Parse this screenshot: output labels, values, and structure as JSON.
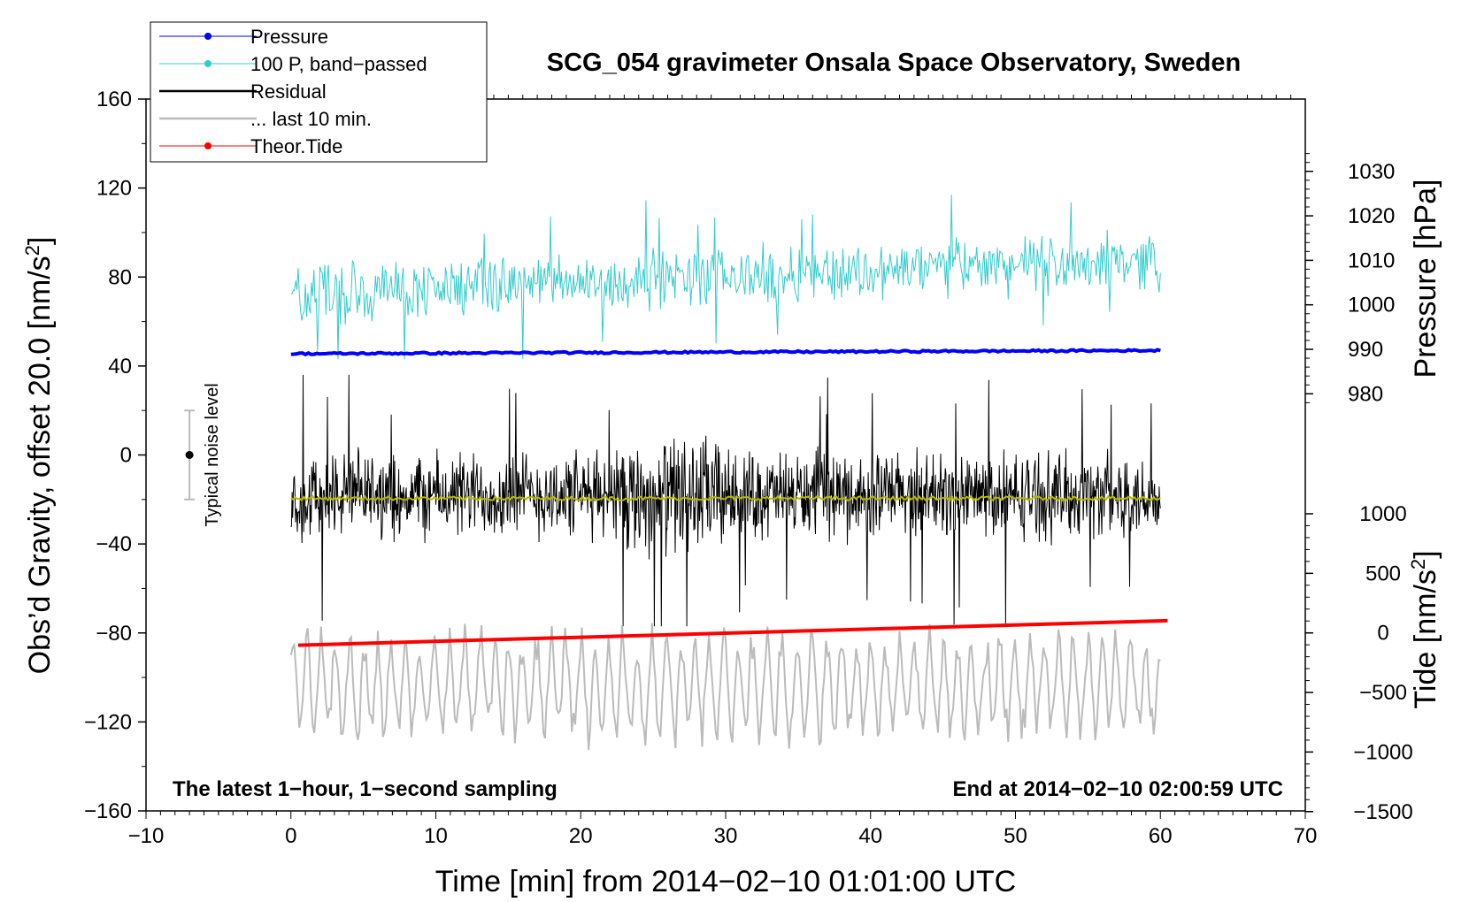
{
  "chart_data": {
    "type": "line",
    "title": "SCG_054 gravimeter Onsala Space Observatory, Sweden",
    "xlabel": "Time [min] from 2014−02−10 01:01:00 UTC",
    "ylabel_main": "Obs’d Gravity, offset 20.0 [nm/s",
    "ylabel_main_sup": "2",
    "ylabel_main_end": "]",
    "ylabel_pressure": "Pressure [hPa]",
    "ylabel_tide": "Tide [nm/s",
    "ylabel_tide_sup": "2",
    "ylabel_tide_end": "]",
    "xlim": [
      -10,
      70
    ],
    "ylim": [
      -160,
      160
    ],
    "x_ticks": [
      "−10",
      "0",
      "10",
      "20",
      "30",
      "40",
      "50",
      "60",
      "70"
    ],
    "y_ticks": [
      "160",
      "120",
      "80",
      "40",
      "0",
      "−40",
      "−80",
      "−120",
      "−160"
    ],
    "pressure_ticks": [
      "1030",
      "1020",
      "1010",
      "1000",
      "990",
      "980"
    ],
    "tide_ticks": [
      "1000",
      "500",
      "0",
      "−500",
      "−1000",
      "−1500"
    ],
    "annotation_left": "The latest 1−hour, 1−second sampling",
    "annotation_right": "End at 2014−02−10 02:00:59 UTC",
    "noise_label": "Typical noise level",
    "noise_bar": {
      "x": -7,
      "center": 0,
      "halfwidth": 20
    },
    "legend": [
      {
        "label": "Pressure",
        "color": "#0000ff",
        "marker": true
      },
      {
        "label": "100 P, band−passed",
        "color": "#33cccc",
        "marker": true
      },
      {
        "label": "Residual",
        "color": "#000000",
        "marker": false
      },
      {
        "label": "... last 10 min.",
        "color": "#bbbbbb",
        "marker": false
      },
      {
        "label": "Theor.Tide",
        "color": "#ff0000",
        "marker": true
      }
    ],
    "series": [
      {
        "name": "Pressure",
        "color": "#0000ff",
        "x_range": [
          0,
          60
        ],
        "level_start": 45.5,
        "level_end": 47.0,
        "note": "pressure axis ~988.5 to 989.5 hPa"
      },
      {
        "name": "100 P, band-passed",
        "color": "#33cccc",
        "x_range": [
          0,
          60
        ],
        "center_start": 72,
        "center_end": 88,
        "amplitude": 12,
        "min": 43,
        "max": 117
      },
      {
        "name": "Residual",
        "color": "#000000",
        "x_range": [
          0,
          60
        ],
        "center": -18,
        "amplitude": 18,
        "min": -77,
        "max": 36
      },
      {
        "name": "Residual smoothed",
        "color": "#b8b800",
        "x_range": [
          0,
          60
        ],
        "level": -19.5
      },
      {
        "name": "... last 10 min.",
        "color": "#bbbbbb",
        "x_range": [
          0,
          60
        ],
        "center": -104,
        "amplitude": 22,
        "min": -140,
        "max": -68
      },
      {
        "name": "Theor.Tide",
        "color": "#ff0000",
        "x_range": [
          0.5,
          60.5
        ],
        "y_start": -85.5,
        "y_end": -74.5,
        "tide_start": -105,
        "tide_end": 90
      }
    ],
    "colors": {
      "frame": "#000000",
      "smoothed": "#b8b800",
      "noise_bar": "#bbbbbb"
    }
  }
}
